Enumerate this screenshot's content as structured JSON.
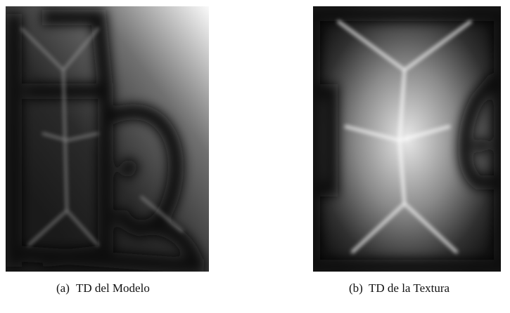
{
  "figures": [
    {
      "label": "(a)",
      "caption": "TD del Modelo"
    },
    {
      "label": "(b)",
      "caption": "TD de la Textura"
    }
  ]
}
